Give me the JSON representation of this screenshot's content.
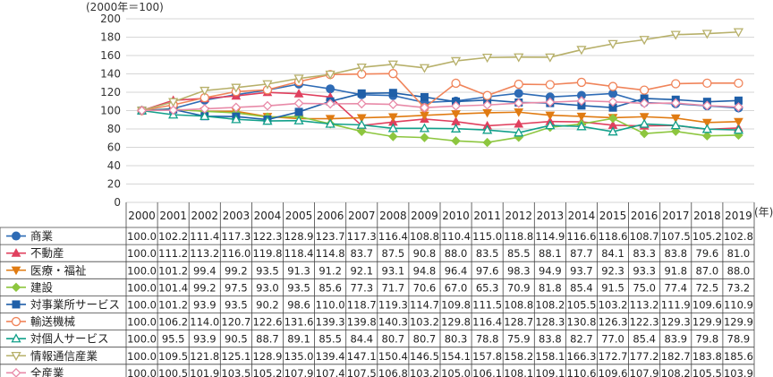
{
  "chart_data": {
    "type": "line",
    "unit_label": "(2000年＝100)",
    "x_unit_label": "(年)",
    "ylim": [
      0,
      200
    ],
    "yticks": [
      "0",
      "20",
      "40",
      "60",
      "80",
      "100",
      "120",
      "140",
      "160",
      "180",
      "200"
    ],
    "categories": [
      "2000",
      "2001",
      "2002",
      "2003",
      "2004",
      "2005",
      "2006",
      "2007",
      "2008",
      "2009",
      "2010",
      "2011",
      "2012",
      "2013",
      "2014",
      "2015",
      "2016",
      "2017",
      "2018",
      "2019"
    ],
    "grid": true,
    "legend": "table-below",
    "series": [
      {
        "name": "商業",
        "color": "#2e6bb5",
        "marker": "circle-filled",
        "values": [
          100.0,
          102.2,
          111.4,
          117.3,
          122.3,
          128.9,
          123.7,
          117.3,
          116.4,
          108.8,
          110.4,
          115.0,
          118.8,
          114.9,
          116.6,
          118.6,
          108.7,
          107.5,
          105.2,
          102.8
        ]
      },
      {
        "name": "不動産",
        "color": "#e0405e",
        "marker": "triangle-up-filled",
        "values": [
          100.0,
          111.2,
          113.2,
          116.0,
          119.8,
          118.4,
          114.8,
          83.7,
          87.5,
          90.8,
          88.0,
          83.5,
          85.5,
          88.1,
          87.7,
          84.1,
          83.3,
          83.8,
          79.6,
          81.0
        ]
      },
      {
        "name": "医療・福祉",
        "color": "#e07b12",
        "marker": "triangle-down-filled",
        "values": [
          100.0,
          101.2,
          99.4,
          99.2,
          93.5,
          91.3,
          91.2,
          92.1,
          93.1,
          94.8,
          96.4,
          97.6,
          98.3,
          94.9,
          93.7,
          92.3,
          93.3,
          91.8,
          87.0,
          88.0
        ]
      },
      {
        "name": "建設",
        "color": "#8dc63f",
        "marker": "diamond-filled",
        "values": [
          100.0,
          101.4,
          99.2,
          97.5,
          93.0,
          93.5,
          85.6,
          77.3,
          71.7,
          70.6,
          67.0,
          65.3,
          70.9,
          81.8,
          85.4,
          91.5,
          75.0,
          77.4,
          72.5,
          73.2
        ]
      },
      {
        "name": "対事業所サービス",
        "color": "#1f5fa8",
        "marker": "square-filled",
        "values": [
          100.0,
          101.2,
          93.9,
          93.5,
          90.2,
          98.6,
          110.0,
          118.7,
          119.3,
          114.7,
          109.8,
          111.5,
          108.8,
          108.2,
          105.5,
          103.2,
          113.2,
          111.9,
          109.6,
          110.9
        ]
      },
      {
        "name": "輸送機械",
        "color": "#f0845a",
        "marker": "circle-open",
        "values": [
          100.0,
          106.2,
          114.0,
          120.7,
          122.6,
          131.6,
          139.3,
          139.8,
          140.3,
          103.2,
          129.8,
          116.4,
          128.7,
          128.3,
          130.8,
          126.3,
          122.3,
          129.3,
          129.9,
          129.9
        ]
      },
      {
        "name": "対個人サービス",
        "color": "#12a08a",
        "marker": "triangle-up-open",
        "values": [
          100.0,
          95.5,
          93.9,
          90.5,
          88.7,
          89.1,
          85.5,
          84.4,
          80.7,
          80.7,
          80.3,
          78.8,
          75.9,
          83.8,
          82.7,
          77.0,
          85.4,
          83.9,
          79.8,
          78.9
        ]
      },
      {
        "name": "情報通信産業",
        "color": "#b7b06a",
        "marker": "triangle-down-open",
        "values": [
          100.0,
          109.5,
          121.8,
          125.1,
          128.9,
          135.0,
          139.4,
          147.1,
          150.4,
          146.5,
          154.1,
          157.8,
          158.2,
          158.1,
          166.3,
          172.7,
          177.2,
          182.7,
          183.8,
          185.6
        ]
      },
      {
        "name": "全産業",
        "color": "#e88aa8",
        "marker": "diamond-open",
        "values": [
          100.0,
          100.5,
          101.9,
          103.5,
          105.2,
          107.9,
          107.4,
          107.5,
          106.8,
          103.2,
          105.0,
          106.1,
          108.1,
          109.1,
          110.6,
          109.6,
          107.9,
          108.2,
          105.5,
          103.9
        ]
      }
    ]
  }
}
